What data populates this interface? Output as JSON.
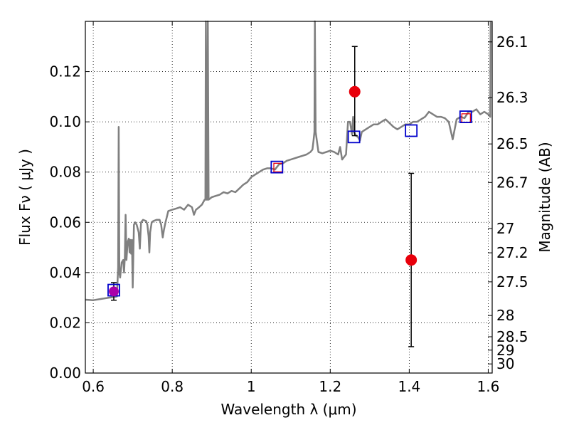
{
  "chart_data": {
    "type": "scatter",
    "xlabel": "Wavelength  λ (μm)",
    "ylabel_left": "Flux  Fν  ( μJy )",
    "ylabel_right": "Magnitude (AB)",
    "xlim": [
      0.58,
      1.61
    ],
    "ylim": [
      0.0,
      0.14
    ],
    "grid": true,
    "xticks": [
      0.6,
      0.8,
      1.0,
      1.2,
      1.4,
      1.6
    ],
    "xtick_labels": [
      "0.6",
      "0.8",
      "1",
      "1.2",
      "1.4",
      "1.6"
    ],
    "yticks": [
      0.0,
      0.02,
      0.04,
      0.06,
      0.08,
      0.1,
      0.12
    ],
    "ytick_labels": [
      "0.00",
      "0.02",
      "0.04",
      "0.06",
      "0.08",
      "0.10",
      "0.12"
    ],
    "right_ticks": [
      {
        "mag": 26.1,
        "label": "26.1"
      },
      {
        "mag": 26.3,
        "label": "26.3"
      },
      {
        "mag": 26.5,
        "label": "26.5"
      },
      {
        "mag": 26.7,
        "label": "26.7"
      },
      {
        "mag": 27.0,
        "label": "27"
      },
      {
        "mag": 27.2,
        "label": "27.2"
      },
      {
        "mag": 27.5,
        "label": "27.5"
      },
      {
        "mag": 28.0,
        "label": "28"
      },
      {
        "mag": 28.5,
        "label": "28.5"
      },
      {
        "mag": 29.0,
        "label": "29"
      },
      {
        "mag": 30.0,
        "label": "30"
      }
    ],
    "model_spectrum": {
      "color": "#808080",
      "points": [
        [
          0.58,
          0.0292
        ],
        [
          0.6,
          0.029
        ],
        [
          0.62,
          0.0295
        ],
        [
          0.64,
          0.03
        ],
        [
          0.655,
          0.0303
        ],
        [
          0.66,
          0.0305
        ],
        [
          0.663,
          0.042
        ],
        [
          0.6645,
          0.098
        ],
        [
          0.666,
          0.04
        ],
        [
          0.668,
          0.038
        ],
        [
          0.672,
          0.044
        ],
        [
          0.676,
          0.045
        ],
        [
          0.678,
          0.04
        ],
        [
          0.68,
          0.046
        ],
        [
          0.682,
          0.063
        ],
        [
          0.684,
          0.045
        ],
        [
          0.687,
          0.052
        ],
        [
          0.69,
          0.0535
        ],
        [
          0.692,
          0.048
        ],
        [
          0.694,
          0.053
        ],
        [
          0.696,
          0.0475
        ],
        [
          0.698,
          0.053
        ],
        [
          0.7,
          0.034
        ],
        [
          0.703,
          0.059
        ],
        [
          0.706,
          0.06
        ],
        [
          0.71,
          0.059
        ],
        [
          0.715,
          0.056
        ],
        [
          0.718,
          0.0495
        ],
        [
          0.721,
          0.06
        ],
        [
          0.726,
          0.061
        ],
        [
          0.734,
          0.0605
        ],
        [
          0.737,
          0.059
        ],
        [
          0.74,
          0.0545
        ],
        [
          0.742,
          0.048
        ],
        [
          0.744,
          0.056
        ],
        [
          0.748,
          0.06
        ],
        [
          0.752,
          0.0605
        ],
        [
          0.76,
          0.061
        ],
        [
          0.768,
          0.061
        ],
        [
          0.772,
          0.059
        ],
        [
          0.776,
          0.054
        ],
        [
          0.779,
          0.057
        ],
        [
          0.783,
          0.06
        ],
        [
          0.79,
          0.0645
        ],
        [
          0.8,
          0.065
        ],
        [
          0.81,
          0.0655
        ],
        [
          0.82,
          0.066
        ],
        [
          0.83,
          0.065
        ],
        [
          0.84,
          0.067
        ],
        [
          0.85,
          0.066
        ],
        [
          0.855,
          0.063
        ],
        [
          0.86,
          0.065
        ],
        [
          0.868,
          0.066
        ],
        [
          0.875,
          0.067
        ],
        [
          0.882,
          0.069
        ],
        [
          0.884,
          0.069
        ],
        [
          0.885,
          0.14
        ],
        [
          0.887,
          0.069
        ],
        [
          0.889,
          0.069
        ],
        [
          0.89,
          0.14
        ],
        [
          0.892,
          0.069
        ],
        [
          0.9,
          0.07
        ],
        [
          0.91,
          0.0705
        ],
        [
          0.92,
          0.071
        ],
        [
          0.93,
          0.072
        ],
        [
          0.94,
          0.0715
        ],
        [
          0.95,
          0.0725
        ],
        [
          0.96,
          0.072
        ],
        [
          0.97,
          0.0735
        ],
        [
          0.98,
          0.075
        ],
        [
          0.99,
          0.076
        ],
        [
          1.0,
          0.078
        ],
        [
          1.01,
          0.079
        ],
        [
          1.02,
          0.08
        ],
        [
          1.03,
          0.081
        ],
        [
          1.04,
          0.0815
        ],
        [
          1.05,
          0.0815
        ],
        [
          1.06,
          0.081
        ],
        [
          1.065,
          0.082
        ],
        [
          1.07,
          0.083
        ],
        [
          1.08,
          0.0835
        ],
        [
          1.09,
          0.0845
        ],
        [
          1.1,
          0.085
        ],
        [
          1.11,
          0.0855
        ],
        [
          1.12,
          0.086
        ],
        [
          1.13,
          0.0865
        ],
        [
          1.14,
          0.087
        ],
        [
          1.15,
          0.088
        ],
        [
          1.155,
          0.089
        ],
        [
          1.158,
          0.093
        ],
        [
          1.16,
          0.096
        ],
        [
          1.161,
          0.14
        ],
        [
          1.163,
          0.096
        ],
        [
          1.17,
          0.088
        ],
        [
          1.18,
          0.0875
        ],
        [
          1.19,
          0.088
        ],
        [
          1.2,
          0.0885
        ],
        [
          1.21,
          0.088
        ],
        [
          1.22,
          0.087
        ],
        [
          1.225,
          0.09
        ],
        [
          1.23,
          0.085
        ],
        [
          1.24,
          0.087
        ],
        [
          1.245,
          0.1
        ],
        [
          1.25,
          0.1
        ],
        [
          1.255,
          0.095
        ],
        [
          1.258,
          0.102
        ],
        [
          1.26,
          0.096
        ],
        [
          1.265,
          0.0945
        ],
        [
          1.27,
          0.094
        ],
        [
          1.275,
          0.0925
        ],
        [
          1.28,
          0.096
        ],
        [
          1.29,
          0.097
        ],
        [
          1.3,
          0.098
        ],
        [
          1.31,
          0.099
        ],
        [
          1.32,
          0.099
        ],
        [
          1.33,
          0.1
        ],
        [
          1.34,
          0.101
        ],
        [
          1.35,
          0.0995
        ],
        [
          1.36,
          0.098
        ],
        [
          1.37,
          0.097
        ],
        [
          1.38,
          0.098
        ],
        [
          1.39,
          0.099
        ],
        [
          1.4,
          0.099
        ],
        [
          1.41,
          0.1
        ],
        [
          1.42,
          0.1
        ],
        [
          1.43,
          0.101
        ],
        [
          1.44,
          0.102
        ],
        [
          1.45,
          0.104
        ],
        [
          1.46,
          0.103
        ],
        [
          1.47,
          0.102
        ],
        [
          1.48,
          0.102
        ],
        [
          1.49,
          0.1015
        ],
        [
          1.5,
          0.1
        ],
        [
          1.51,
          0.093
        ],
        [
          1.52,
          0.101
        ],
        [
          1.53,
          0.102
        ],
        [
          1.54,
          0.1015
        ],
        [
          1.55,
          0.104
        ],
        [
          1.56,
          0.104
        ],
        [
          1.57,
          0.105
        ],
        [
          1.58,
          0.103
        ],
        [
          1.59,
          0.104
        ],
        [
          1.6,
          0.103
        ],
        [
          1.605,
          0.102
        ],
        [
          1.606,
          0.14
        ]
      ]
    },
    "model_photometry": {
      "color": "#0000cc",
      "points": [
        [
          0.652,
          0.033
        ],
        [
          1.065,
          0.082
        ],
        [
          1.26,
          0.094
        ],
        [
          1.405,
          0.0965
        ],
        [
          1.543,
          0.102
        ]
      ]
    },
    "input_photometry": {
      "color": "#e8000b",
      "points": [
        [
          1.068,
          0.0818
        ],
        [
          1.544,
          0.1015
        ]
      ]
    },
    "observed_detections": {
      "color": "#e8000b",
      "points": [
        {
          "x": 1.262,
          "y": 0.112,
          "yerr_low": 0.0945,
          "yerr_high": 0.13
        },
        {
          "x": 1.405,
          "y": 0.045,
          "yerr_low": 0.0105,
          "yerr_high": 0.0795
        }
      ]
    },
    "observed_other": {
      "color": "#aa00aa",
      "points": [
        {
          "x": 0.652,
          "y": 0.0325,
          "yerr_low": 0.029,
          "yerr_high": 0.036
        }
      ]
    }
  }
}
